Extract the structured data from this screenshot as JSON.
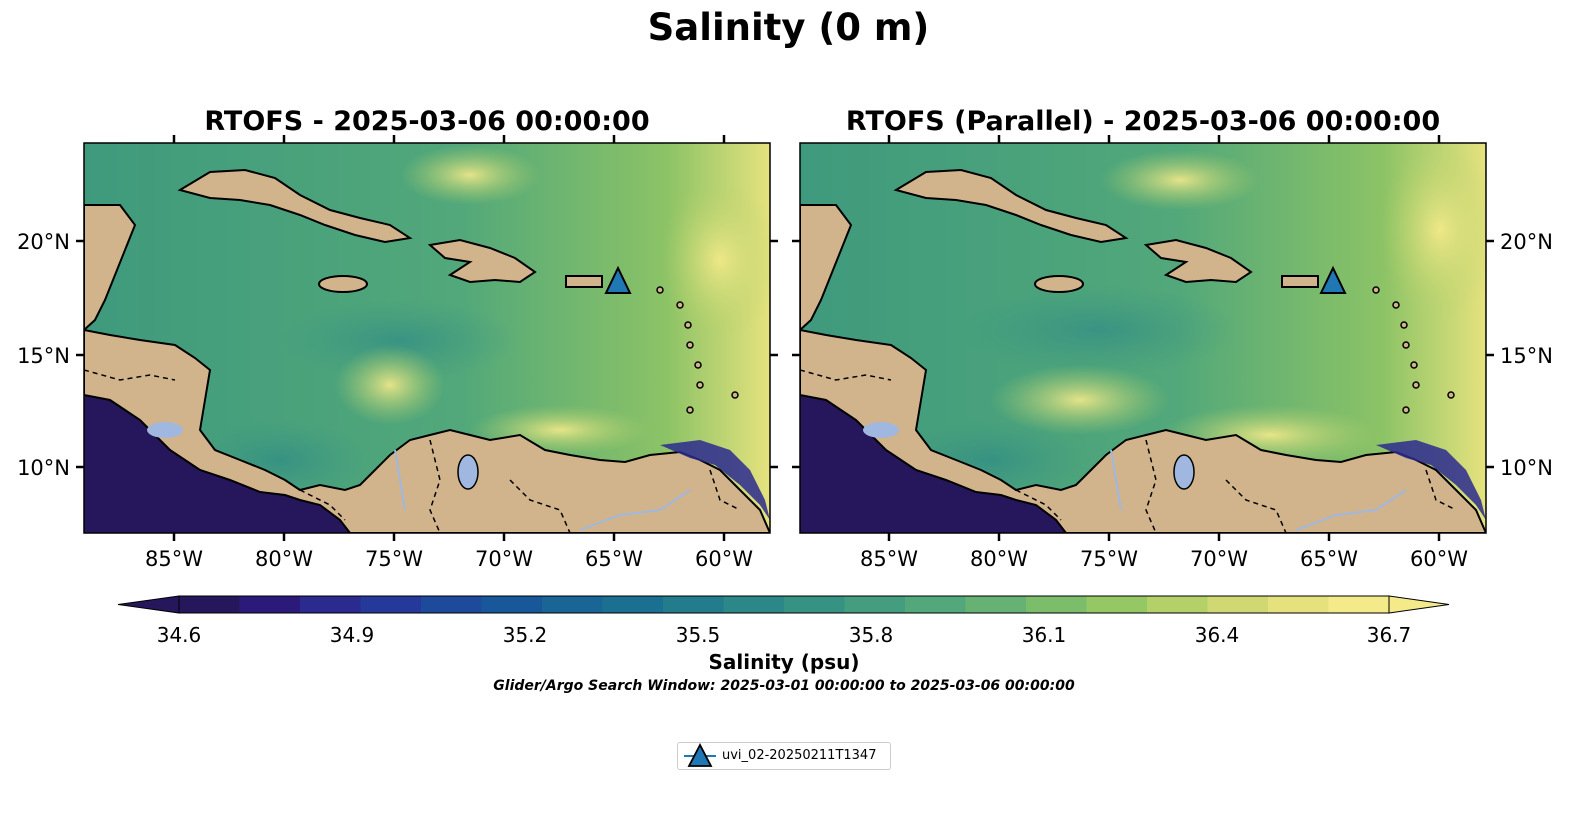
{
  "figure": {
    "suptitle": "Salinity (0 m)",
    "panels": [
      {
        "title": "RTOFS - 2025-03-06 00:00:00"
      },
      {
        "title": "RTOFS (Parallel) - 2025-03-06 00:00:00"
      }
    ],
    "lon_ticks": [
      "85°W",
      "80°W",
      "75°W",
      "70°W",
      "65°W",
      "60°W"
    ],
    "lat_ticks": [
      "20°N",
      "15°N",
      "10°N"
    ],
    "colorbar": {
      "ticks": [
        "34.6",
        "34.9",
        "35.2",
        "35.5",
        "35.8",
        "36.1",
        "36.4",
        "36.7"
      ],
      "label": "Salinity (psu)",
      "colors": [
        "#26175c",
        "#2c1a7a",
        "#2b2a8f",
        "#25399a",
        "#1d4a9a",
        "#18589a",
        "#186596",
        "#1b7091",
        "#227c8c",
        "#2b8788",
        "#369283",
        "#439d7e",
        "#52a87a",
        "#65b274",
        "#7cbd6c",
        "#96c765",
        "#b4d068",
        "#cfd873",
        "#e5e27e",
        "#f5ea8a"
      ],
      "extend": "both"
    },
    "search_window": "Glider/Argo Search Window: 2025-03-01 00:00:00 to 2025-03-06 00:00:00",
    "legend": {
      "entries": [
        {
          "label": "uvi_02-20250211T1347",
          "marker": "triangle",
          "color": "#1f77b4"
        }
      ]
    },
    "map_colors": {
      "land": "#d2b48c",
      "ocean_base": "#4fa678",
      "lakes": "#a0b8e0",
      "deep_pacific": "#26175c"
    },
    "marker": {
      "lon": -65.0,
      "lat": 18.3
    }
  }
}
